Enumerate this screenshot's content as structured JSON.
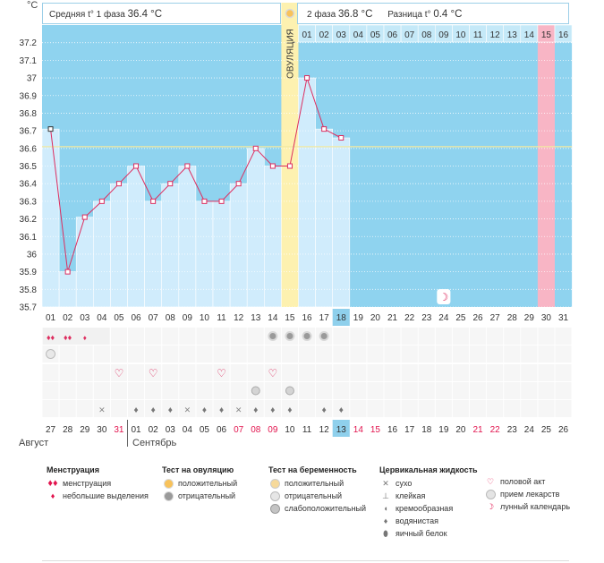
{
  "colors": {
    "bg_blue": "#8fd3ef",
    "bar_light": "#d0ecfc",
    "line_pink": "#dd2d5f",
    "cover_yellow": "#f2e9a1",
    "ovulation_yellow": "#fdf1b0",
    "day_pink": "#f8b5c5",
    "today_blue": "#8fd0ec",
    "red_text": "#e2144e"
  },
  "header": {
    "phase1_label": "Средняя t° 1 фаза",
    "phase1_value": "36.4 °C",
    "phase2_label": "2 фаза",
    "phase2_value": "36.8 °C",
    "diff_label": "Разница t°",
    "diff_value": "0.4 °C"
  },
  "chart_data": {
    "type": "line",
    "title": "",
    "ylabel": "°C",
    "ylim": [
      35.7,
      37.3
    ],
    "yticks": [
      "37.2",
      "37.1",
      "37",
      "36.9",
      "36.8",
      "36.7",
      "36.6",
      "36.5",
      "36.4",
      "36.3",
      "36.2",
      "36.1",
      "36",
      "35.9",
      "35.8",
      "35.7"
    ],
    "ovulation_label": "ОВУЛЯЦИЯ",
    "coverline": 36.61,
    "cycle_days": [
      "01",
      "02",
      "03",
      "04",
      "05",
      "06",
      "07",
      "08",
      "09",
      "10",
      "11",
      "12",
      "13",
      "14",
      "15",
      "16",
      "17",
      "18",
      "19",
      "20",
      "21",
      "22",
      "23",
      "24",
      "25",
      "26",
      "27",
      "28",
      "29",
      "30",
      "31"
    ],
    "after_ovulation_days": [
      "01",
      "02",
      "03",
      "04",
      "05",
      "06",
      "07",
      "08",
      "09",
      "10",
      "11",
      "12",
      "13",
      "14",
      "15",
      "16"
    ],
    "temperatures": [
      36.71,
      35.9,
      36.21,
      36.3,
      36.4,
      36.5,
      36.3,
      36.4,
      36.5,
      36.3,
      36.3,
      36.4,
      36.6,
      36.5,
      36.5,
      37.0,
      36.71,
      36.66
    ],
    "current_day": "18",
    "highlight_post_day": "15",
    "calendar_dates": [
      "27",
      "28",
      "29",
      "30",
      "31",
      "01",
      "02",
      "03",
      "04",
      "05",
      "06",
      "07",
      "08",
      "09",
      "10",
      "11",
      "12",
      "13",
      "14",
      "15",
      "16",
      "17",
      "18",
      "19",
      "20",
      "21",
      "22",
      "23",
      "24",
      "25",
      "26"
    ],
    "red_dates": [
      "31",
      "07",
      "08",
      "09",
      "14",
      "15",
      "21",
      "22"
    ],
    "months": [
      "Август",
      "Сентябрь"
    ],
    "lunar_marker": "лунный календарь"
  },
  "legend": {
    "menstruation": {
      "title": "Менструация",
      "items": [
        "менструация",
        "небольшие выделения"
      ]
    },
    "ovulation_test": {
      "title": "Тест на овуляцию",
      "items": [
        "положительный",
        "отрицательный"
      ]
    },
    "pregnancy_test": {
      "title": "Тест на беременность",
      "items": [
        "положительный",
        "отрицательный",
        "слабоположительный"
      ]
    },
    "cervical": {
      "title": "Цервикальная жидкость",
      "items": [
        "сухо",
        "клейкая",
        "кремообразная",
        "водянистая",
        "яичный белок"
      ]
    },
    "other": {
      "items": [
        "половой акт",
        "прием лекарств",
        "лунный календарь"
      ]
    }
  }
}
